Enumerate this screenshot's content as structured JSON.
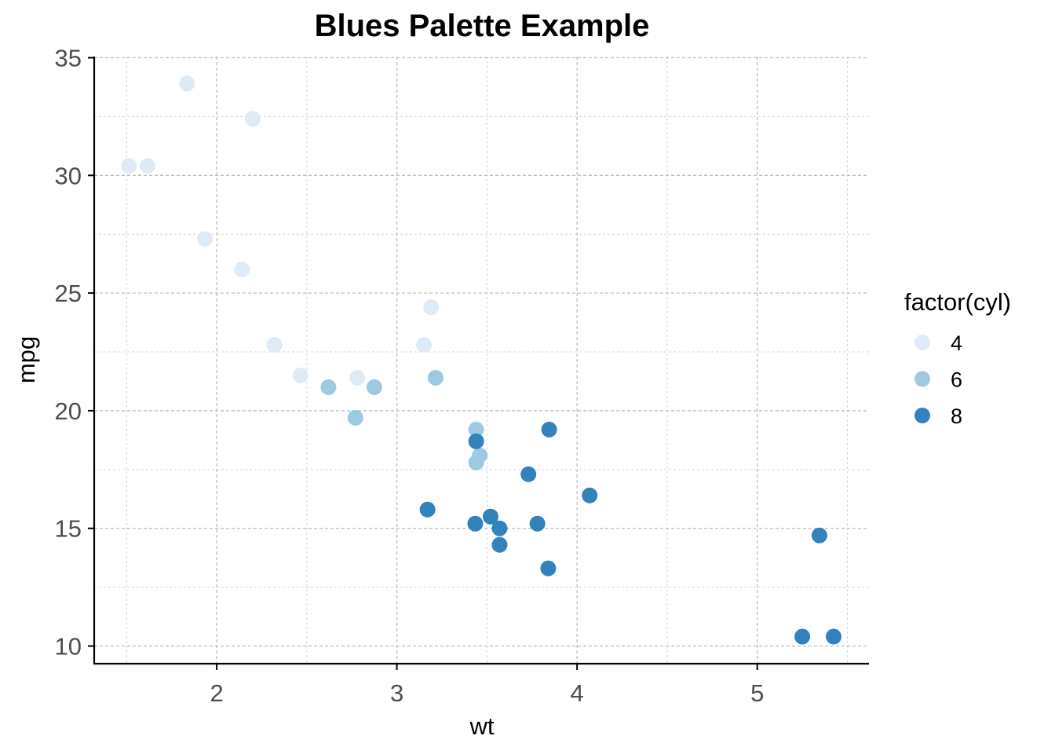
{
  "chart_data": {
    "type": "scatter",
    "title": "Blues Palette Example",
    "xlabel": "wt",
    "ylabel": "mpg",
    "xlim": [
      1.32,
      5.62
    ],
    "ylim": [
      9.25,
      35.05
    ],
    "x_ticks": [
      2,
      3,
      4,
      5
    ],
    "y_ticks": [
      10,
      15,
      20,
      25,
      30,
      35
    ],
    "x_minor": [
      1.5,
      2.5,
      3.5,
      4.5,
      5.5
    ],
    "y_minor": [
      12.5,
      17.5,
      22.5,
      27.5,
      32.5
    ],
    "grid": true,
    "legend": {
      "title": "factor(cyl)",
      "position": "right"
    },
    "series": [
      {
        "name": "4",
        "color": "#deebf7",
        "points": [
          {
            "x": 2.32,
            "y": 22.8
          },
          {
            "x": 3.19,
            "y": 24.4
          },
          {
            "x": 3.15,
            "y": 22.8
          },
          {
            "x": 2.2,
            "y": 32.4
          },
          {
            "x": 1.615,
            "y": 30.4
          },
          {
            "x": 1.835,
            "y": 33.9
          },
          {
            "x": 2.465,
            "y": 21.5
          },
          {
            "x": 1.935,
            "y": 27.3
          },
          {
            "x": 2.14,
            "y": 26.0
          },
          {
            "x": 1.513,
            "y": 30.4
          },
          {
            "x": 2.78,
            "y": 21.4
          }
        ]
      },
      {
        "name": "6",
        "color": "#9ecae1",
        "points": [
          {
            "x": 2.62,
            "y": 21.0
          },
          {
            "x": 2.875,
            "y": 21.0
          },
          {
            "x": 3.215,
            "y": 21.4
          },
          {
            "x": 3.46,
            "y": 18.1
          },
          {
            "x": 3.44,
            "y": 19.2
          },
          {
            "x": 3.44,
            "y": 17.8
          },
          {
            "x": 2.77,
            "y": 19.7
          }
        ]
      },
      {
        "name": "8",
        "color": "#3182bd",
        "points": [
          {
            "x": 3.44,
            "y": 18.7
          },
          {
            "x": 3.57,
            "y": 14.3
          },
          {
            "x": 4.07,
            "y": 16.4
          },
          {
            "x": 3.73,
            "y": 17.3
          },
          {
            "x": 3.78,
            "y": 15.2
          },
          {
            "x": 5.25,
            "y": 10.4
          },
          {
            "x": 5.424,
            "y": 10.4
          },
          {
            "x": 5.345,
            "y": 14.7
          },
          {
            "x": 3.52,
            "y": 15.5
          },
          {
            "x": 3.435,
            "y": 15.2
          },
          {
            "x": 3.84,
            "y": 13.3
          },
          {
            "x": 3.845,
            "y": 19.2
          },
          {
            "x": 3.17,
            "y": 15.8
          },
          {
            "x": 3.57,
            "y": 15.0
          }
        ]
      }
    ]
  }
}
